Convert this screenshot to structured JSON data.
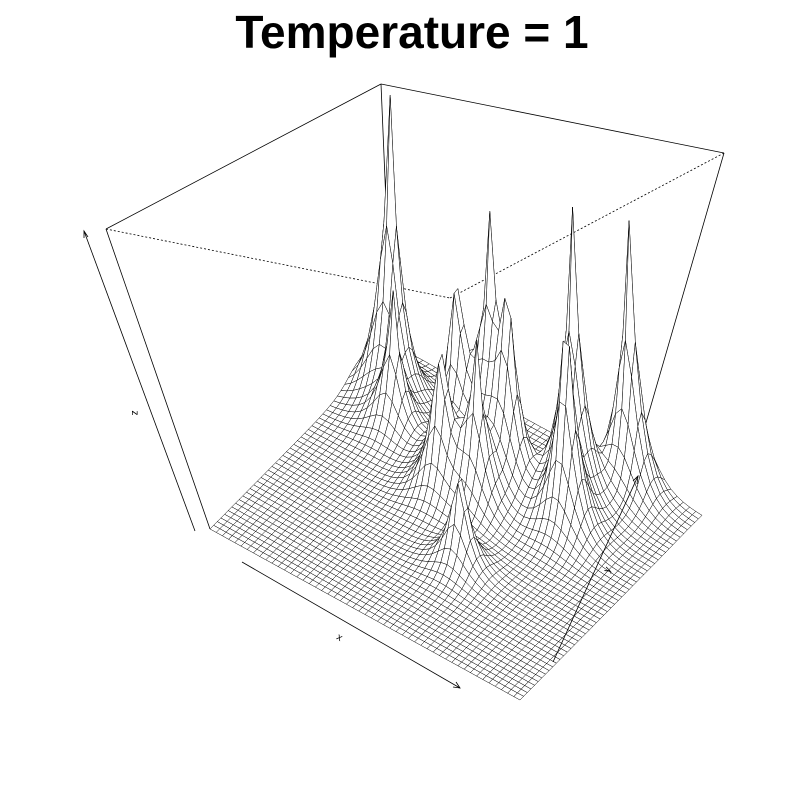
{
  "chart_data": {
    "type": "surface-3d",
    "title": "Temperature =  1",
    "xlabel": "x",
    "ylabel": "y",
    "zlabel": "z",
    "grid_resolution": 50,
    "peaks": [
      {
        "x": 0.1,
        "y": 0.82,
        "height": 1.0
      },
      {
        "x": 0.18,
        "y": 0.7,
        "height": 0.45
      },
      {
        "x": 0.4,
        "y": 0.67,
        "height": 0.7
      },
      {
        "x": 0.48,
        "y": 0.72,
        "height": 0.75
      },
      {
        "x": 0.55,
        "y": 0.7,
        "height": 0.65
      },
      {
        "x": 0.42,
        "y": 0.55,
        "height": 0.55
      },
      {
        "x": 0.52,
        "y": 0.58,
        "height": 0.5
      },
      {
        "x": 0.7,
        "y": 0.8,
        "height": 0.95
      },
      {
        "x": 0.75,
        "y": 0.68,
        "height": 0.8
      },
      {
        "x": 0.6,
        "y": 0.35,
        "height": 0.38
      },
      {
        "x": 0.8,
        "y": 0.94,
        "height": 0.9
      }
    ],
    "peak_width": 0.035,
    "colors": {
      "surface": "#ffffff",
      "line": "#000000"
    }
  }
}
